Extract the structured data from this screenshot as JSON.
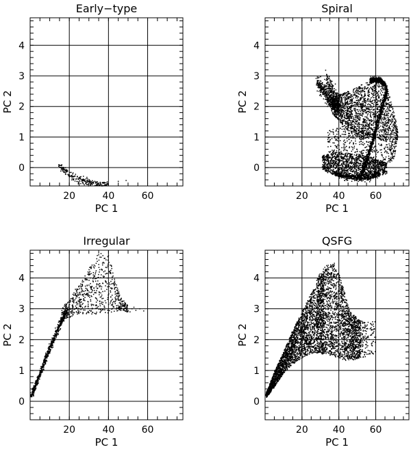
{
  "chart_data": [
    {
      "type": "scatter",
      "title": "Early−type",
      "xlabel": "PC 1",
      "ylabel": "PC 2",
      "xlim": [
        0,
        78
      ],
      "ylim": [
        -0.6,
        4.9
      ],
      "xticks": [
        20,
        40,
        60
      ],
      "yticks": [
        0,
        1,
        2,
        3,
        4
      ],
      "grid": true,
      "regions": [
        {
          "kind": "band",
          "n": 240,
          "x0": 15,
          "x1": 40,
          "curve": [
            [
              15,
              0.05
            ],
            [
              20,
              -0.25
            ],
            [
              25,
              -0.38
            ],
            [
              30,
              -0.48
            ],
            [
              35,
              -0.55
            ],
            [
              40,
              -0.58
            ]
          ],
          "spread": 0.06
        },
        {
          "kind": "points",
          "pts": [
            [
              33,
              -0.45
            ],
            [
              38,
              -0.5
            ],
            [
              45,
              -0.45
            ],
            [
              49,
              -0.42
            ]
          ]
        }
      ]
    },
    {
      "type": "scatter",
      "title": "Spiral",
      "xlabel": "PC 1",
      "ylabel": "PC 2",
      "xlim": [
        0,
        78
      ],
      "ylim": [
        -0.6,
        4.9
      ],
      "xticks": [
        20,
        40,
        60
      ],
      "yticks": [
        0,
        1,
        2,
        3,
        4
      ],
      "grid": true,
      "regions": [
        {
          "kind": "blob",
          "n": 1600,
          "x0": 36,
          "x1": 66,
          "yl": [
            [
              36,
              1.8
            ],
            [
              45,
              1.2
            ],
            [
              52,
              0.9
            ],
            [
              60,
              1.0
            ],
            [
              66,
              0.8
            ]
          ],
          "yh": [
            [
              36,
              2.3
            ],
            [
              45,
              2.5
            ],
            [
              52,
              2.7
            ],
            [
              58,
              2.85
            ],
            [
              63,
              2.85
            ],
            [
              66,
              2.5
            ]
          ]
        },
        {
          "kind": "blob",
          "n": 1100,
          "x0": 31,
          "x1": 66,
          "yl": [
            [
              31,
              -0.1
            ],
            [
              40,
              -0.3
            ],
            [
              50,
              -0.35
            ],
            [
              60,
              -0.3
            ],
            [
              66,
              -0.2
            ]
          ],
          "yh": [
            [
              31,
              0.4
            ],
            [
              40,
              0.5
            ],
            [
              50,
              0.45
            ],
            [
              60,
              0.3
            ],
            [
              66,
              0.15
            ]
          ]
        },
        {
          "kind": "blob",
          "n": 500,
          "x0": 34,
          "x1": 66,
          "yl": [
            [
              34,
              0.0
            ],
            [
              66,
              0.0
            ]
          ],
          "yh": [
            [
              34,
              1.2
            ],
            [
              45,
              1.4
            ],
            [
              55,
              1.3
            ],
            [
              66,
              1.0
            ]
          ]
        },
        {
          "kind": "blob",
          "n": 300,
          "x0": 66,
          "x1": 72,
          "yl": [
            [
              66,
              0.0
            ],
            [
              70,
              0.3
            ],
            [
              72,
              1.0
            ]
          ],
          "yh": [
            [
              66,
              2.7
            ],
            [
              70,
              1.8
            ],
            [
              72,
              1.2
            ]
          ]
        },
        {
          "kind": "band",
          "n": 400,
          "x0": 28,
          "x1": 40,
          "curve": [
            [
              28,
              2.8
            ],
            [
              32,
              2.5
            ],
            [
              36,
              2.15
            ],
            [
              40,
              1.95
            ]
          ],
          "spread": 0.12
        },
        {
          "kind": "band",
          "n": 200,
          "x0": 33,
          "x1": 40,
          "curve": [
            [
              33,
              2.9
            ],
            [
              36,
              2.5
            ],
            [
              40,
              2.0
            ]
          ],
          "spread": 0.15
        },
        {
          "kind": "band",
          "n": 500,
          "x0": 57,
          "x1": 66,
          "curve": [
            [
              57,
              2.85
            ],
            [
              60,
              2.88
            ],
            [
              63,
              2.85
            ],
            [
              65,
              2.7
            ],
            [
              66,
              2.5
            ]
          ],
          "spread": 0.04
        },
        {
          "kind": "band",
          "n": 700,
          "x0": 52,
          "x1": 66,
          "curve": [
            [
              52,
              -0.25
            ],
            [
              55,
              0.2
            ],
            [
              58,
              0.8
            ],
            [
              61,
              1.5
            ],
            [
              64,
              2.1
            ],
            [
              66,
              2.5
            ]
          ],
          "spread": 0.07
        },
        {
          "kind": "band",
          "n": 500,
          "x0": 38,
          "x1": 62,
          "curve": [
            [
              38,
              -0.2
            ],
            [
              45,
              -0.3
            ],
            [
              52,
              -0.35
            ],
            [
              57,
              -0.3
            ],
            [
              62,
              -0.2
            ]
          ],
          "spread": 0.05
        }
      ]
    },
    {
      "type": "scatter",
      "title": "Irregular",
      "xlabel": "PC 1",
      "ylabel": "PC 2",
      "xlim": [
        0,
        78
      ],
      "ylim": [
        -0.6,
        4.9
      ],
      "xticks": [
        20,
        40,
        60
      ],
      "yticks": [
        0,
        1,
        2,
        3,
        4
      ],
      "grid": true,
      "regions": [
        {
          "kind": "band",
          "n": 650,
          "x0": 0.5,
          "x1": 19,
          "curve": [
            [
              0.5,
              0.15
            ],
            [
              3,
              0.55
            ],
            [
              6,
              1.05
            ],
            [
              9,
              1.55
            ],
            [
              13,
              2.15
            ],
            [
              16,
              2.6
            ],
            [
              19,
              2.95
            ]
          ],
          "spread": 0.06
        },
        {
          "kind": "blob",
          "n": 650,
          "x0": 16,
          "x1": 50,
          "yl": [
            [
              16,
              2.6
            ],
            [
              25,
              2.85
            ],
            [
              35,
              2.8
            ],
            [
              42,
              2.9
            ],
            [
              46,
              2.95
            ],
            [
              50,
              2.85
            ]
          ],
          "yh": [
            [
              16,
              3.0
            ],
            [
              25,
              3.8
            ],
            [
              30,
              4.3
            ],
            [
              35,
              4.8
            ],
            [
              40,
              4.8
            ],
            [
              43,
              4.0
            ],
            [
              46,
              3.4
            ],
            [
              50,
              3.1
            ]
          ]
        },
        {
          "kind": "points",
          "pts": [
            [
              52,
              3.0
            ],
            [
              54,
              2.95
            ],
            [
              56,
              3.0
            ],
            [
              58,
              2.93
            ],
            [
              51,
              2.9
            ],
            [
              53,
              3.05
            ]
          ]
        }
      ]
    },
    {
      "type": "scatter",
      "title": "QSFG",
      "xlabel": "PC 1",
      "ylabel": "PC 2",
      "xlim": [
        0,
        78
      ],
      "ylim": [
        -0.6,
        4.9
      ],
      "xticks": [
        20,
        40,
        60
      ],
      "yticks": [
        0,
        1,
        2,
        3,
        4
      ],
      "grid": true,
      "regions": [
        {
          "kind": "blob",
          "n": 2600,
          "x0": 0.5,
          "x1": 32,
          "yl": [
            [
              0.5,
              0.1
            ],
            [
              5,
              0.45
            ],
            [
              10,
              0.9
            ],
            [
              15,
              1.2
            ],
            [
              20,
              1.4
            ],
            [
              25,
              1.55
            ],
            [
              32,
              1.6
            ]
          ],
          "yh": [
            [
              0.5,
              0.25
            ],
            [
              5,
              0.95
            ],
            [
              10,
              1.6
            ],
            [
              15,
              2.3
            ],
            [
              20,
              2.9
            ],
            [
              25,
              3.5
            ],
            [
              32,
              4.3
            ]
          ]
        },
        {
          "kind": "blob",
          "n": 2000,
          "x0": 28,
          "x1": 52,
          "yl": [
            [
              28,
              1.55
            ],
            [
              35,
              1.5
            ],
            [
              40,
              1.4
            ],
            [
              45,
              1.3
            ],
            [
              52,
              1.4
            ]
          ],
          "yh": [
            [
              28,
              4.0
            ],
            [
              33,
              4.4
            ],
            [
              38,
              4.5
            ],
            [
              42,
              3.8
            ],
            [
              46,
              2.9
            ],
            [
              52,
              2.6
            ]
          ]
        },
        {
          "kind": "blob",
          "n": 120,
          "x0": 52,
          "x1": 60,
          "yl": [
            [
              52,
              1.4
            ],
            [
              60,
              1.5
            ]
          ],
          "yh": [
            [
              52,
              2.6
            ],
            [
              60,
              2.6
            ]
          ]
        }
      ]
    }
  ]
}
